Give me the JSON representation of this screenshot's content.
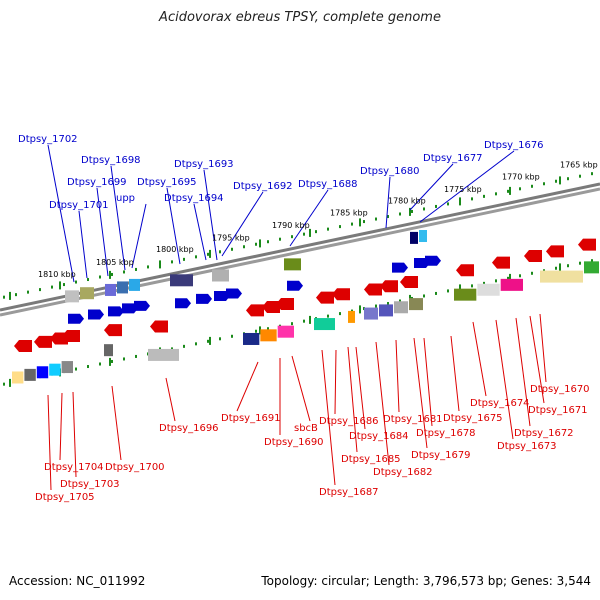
{
  "title": "Acidovorax ebreus TPSY, complete genome",
  "footer": {
    "accession": "Accession: NC_011992",
    "summary": "Topology: circular; Length: 3,796,573 bp; Genes: 3,544"
  },
  "colors": {
    "forward": "#0000cc",
    "reverse": "#dd0000",
    "backbone": "#808080",
    "tick": "#1a8a1a"
  },
  "ruler": [
    "1810 kbp",
    "1805 kbp",
    "1800 kbp",
    "1795 kbp",
    "1790 kbp",
    "1785 kbp",
    "1780 kbp",
    "1775 kbp",
    "1770 kbp",
    "1765 kbp"
  ],
  "genes_forward": [
    "Dtpsy_1702",
    "Dtpsy_1701",
    "Dtpsy_1699",
    "Dtpsy_1698",
    "upp",
    "Dtpsy_1695",
    "Dtpsy_1694",
    "Dtpsy_1693",
    "Dtpsy_1692",
    "Dtpsy_1688",
    "Dtpsy_1680",
    "Dtpsy_1677",
    "Dtpsy_1676"
  ],
  "genes_reverse": [
    "Dtpsy_1705",
    "Dtpsy_1704",
    "Dtpsy_1703",
    "Dtpsy_1700",
    "Dtpsy_1696",
    "Dtpsy_1691",
    "Dtpsy_1690",
    "sbcB",
    "Dtpsy_1687",
    "Dtpsy_1686",
    "Dtpsy_1685",
    "Dtpsy_1684",
    "Dtpsy_1682",
    "Dtpsy_1681",
    "Dtpsy_1679",
    "Dtpsy_1678",
    "Dtpsy_1675",
    "Dtpsy_1674",
    "Dtpsy_1673",
    "Dtpsy_1672",
    "Dtpsy_1671",
    "Dtpsy_1670"
  ]
}
